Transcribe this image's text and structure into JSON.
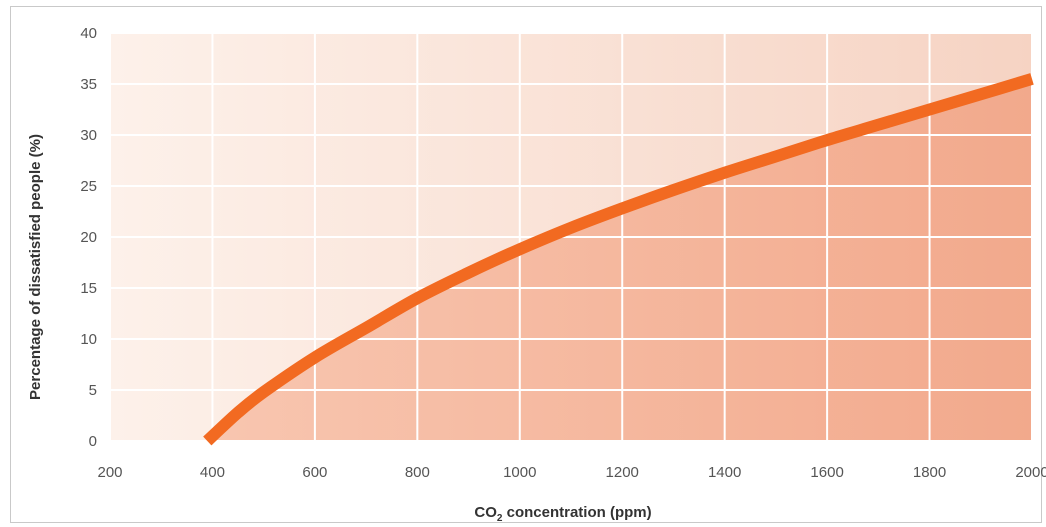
{
  "chart_data": {
    "type": "line",
    "xlabel_main": "CO",
    "xlabel_sub": "2",
    "xlabel_rest": " concentration (ppm)",
    "ylabel": "Percentage of dissatisfied people (%)",
    "xlim": [
      200,
      2000
    ],
    "ylim": [
      0,
      40
    ],
    "xticks": [
      "200",
      "400",
      "600",
      "800",
      "1000",
      "1200",
      "1400",
      "1600",
      "1800",
      "2000"
    ],
    "yticks": [
      "0",
      "5",
      "10",
      "15",
      "20",
      "25",
      "30",
      "35",
      "40"
    ],
    "grid": true,
    "series": [
      {
        "x": [
          390,
          450,
          500,
          600,
          700,
          800,
          900,
          1000,
          1100,
          1200,
          1300,
          1400,
          1500,
          1600,
          1700,
          1800,
          1900,
          2000
        ],
        "y": [
          0,
          2.8,
          4.8,
          8.2,
          11.1,
          14.0,
          16.5,
          18.8,
          20.9,
          22.8,
          24.6,
          26.3,
          27.9,
          29.5,
          31.0,
          32.5,
          34.0,
          35.5
        ]
      }
    ],
    "colors": {
      "line": "#f26a21",
      "fill_light": "#fdeee6",
      "fill_dark": "#f6b49c",
      "grid": "#ffffff",
      "plot_bg_left": "#fbe9df",
      "plot_bg_right": "#f3c7b4"
    }
  }
}
